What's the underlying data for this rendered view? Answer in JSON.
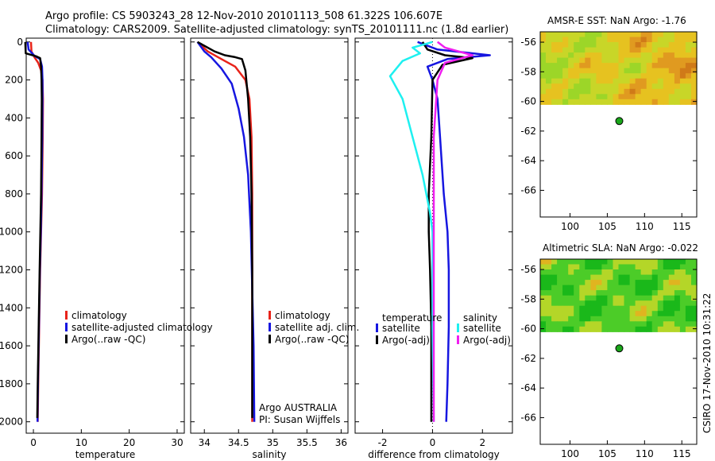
{
  "title": {
    "line1": "Argo profile: CS 5903243_28 12-Nov-2010 20101113_508 61.322S 106.607E",
    "line2": "Climatology: CARS2009. Satellite-adjusted climatology: synTS_20101111.nc (1.8d earlier)"
  },
  "credits": {
    "argo": "Argo AUSTRALIA",
    "pi": "PI: Susan Wijffels",
    "stamp": "CSIRO 17-Nov-2010 10:31:22"
  },
  "colors": {
    "red": "#e8231a",
    "blue": "#1616e0",
    "black": "#000000",
    "cyan": "#1ef0f0",
    "magenta": "#f01ef0",
    "green": "#1aa61a"
  },
  "chart_data": [
    {
      "type": "line",
      "id": "temperature",
      "xlabel": "temperature",
      "ylabel": "",
      "xlim": [
        -1.5,
        31.5
      ],
      "ylim": [
        2060,
        -20
      ],
      "xticks": [
        0,
        10,
        20,
        30
      ],
      "yticks": [
        0,
        200,
        400,
        600,
        800,
        1000,
        1200,
        1400,
        1600,
        1800,
        2000
      ],
      "legend": [
        "climatology",
        "satellite-adjusted climatology",
        "Argo(..raw -QC)"
      ],
      "series": [
        {
          "name": "climatology",
          "color": "red",
          "pts": [
            [
              -0.5,
              0
            ],
            [
              -0.4,
              50
            ],
            [
              0.2,
              80
            ],
            [
              1.0,
              110
            ],
            [
              1.6,
              150
            ],
            [
              1.9,
              200
            ],
            [
              2.0,
              300
            ],
            [
              1.95,
              500
            ],
            [
              1.8,
              800
            ],
            [
              1.6,
              1000
            ],
            [
              1.4,
              1200
            ],
            [
              1.2,
              1500
            ],
            [
              1.0,
              1800
            ],
            [
              0.9,
              2000
            ]
          ]
        },
        {
          "name": "satellite",
          "color": "blue",
          "pts": [
            [
              -1.2,
              0
            ],
            [
              -1.0,
              40
            ],
            [
              0.3,
              75
            ],
            [
              1.4,
              90
            ],
            [
              1.8,
              130
            ],
            [
              1.9,
              200
            ],
            [
              1.9,
              300
            ],
            [
              1.85,
              500
            ],
            [
              1.7,
              800
            ],
            [
              1.55,
              1000
            ],
            [
              1.35,
              1200
            ],
            [
              1.15,
              1500
            ],
            [
              0.95,
              1800
            ],
            [
              0.85,
              2000
            ]
          ]
        },
        {
          "name": "argo",
          "color": "black",
          "pts": [
            [
              -1.7,
              0
            ],
            [
              -1.6,
              60
            ],
            [
              0.5,
              75
            ],
            [
              1.4,
              85
            ],
            [
              1.6,
              130
            ],
            [
              1.7,
              200
            ],
            [
              1.75,
              300
            ],
            [
              1.7,
              500
            ],
            [
              1.6,
              800
            ],
            [
              1.45,
              1000
            ],
            [
              1.3,
              1200
            ],
            [
              1.1,
              1500
            ],
            [
              0.9,
              1800
            ],
            [
              0.8,
              1980
            ]
          ]
        }
      ]
    },
    {
      "type": "line",
      "id": "salinity",
      "xlabel": "salinity",
      "ylabel": "",
      "xlim": [
        33.8,
        36.1
      ],
      "ylim": [
        2060,
        -20
      ],
      "xticks": [
        34,
        34.5,
        35,
        35.5,
        36
      ],
      "yticks": [
        0,
        200,
        400,
        600,
        800,
        1000,
        1200,
        1400,
        1600,
        1800,
        2000
      ],
      "legend": [
        "climatology",
        "satellite adj. clim.",
        "Argo(..raw -QC)"
      ],
      "series": [
        {
          "name": "climatology",
          "color": "red",
          "pts": [
            [
              33.9,
              0
            ],
            [
              34.05,
              50
            ],
            [
              34.25,
              90
            ],
            [
              34.45,
              130
            ],
            [
              34.6,
              200
            ],
            [
              34.66,
              300
            ],
            [
              34.69,
              500
            ],
            [
              34.7,
              800
            ],
            [
              34.7,
              1200
            ],
            [
              34.7,
              1600
            ],
            [
              34.7,
              2000
            ]
          ]
        },
        {
          "name": "satellite",
          "color": "blue",
          "pts": [
            [
              33.9,
              0
            ],
            [
              34.0,
              50
            ],
            [
              34.1,
              80
            ],
            [
              34.25,
              140
            ],
            [
              34.4,
              220
            ],
            [
              34.5,
              350
            ],
            [
              34.58,
              500
            ],
            [
              34.64,
              700
            ],
            [
              34.68,
              1000
            ],
            [
              34.7,
              1300
            ],
            [
              34.72,
              1600
            ],
            [
              34.73,
              2000
            ]
          ]
        },
        {
          "name": "argo",
          "color": "black",
          "pts": [
            [
              33.9,
              0
            ],
            [
              34.15,
              50
            ],
            [
              34.3,
              70
            ],
            [
              34.45,
              80
            ],
            [
              34.55,
              90
            ],
            [
              34.6,
              150
            ],
            [
              34.64,
              300
            ],
            [
              34.67,
              500
            ],
            [
              34.69,
              800
            ],
            [
              34.7,
              1200
            ],
            [
              34.7,
              1600
            ],
            [
              34.7,
              1980
            ]
          ]
        }
      ]
    },
    {
      "type": "line",
      "id": "difference",
      "xlabel": "difference from climatology",
      "ylabel": "",
      "xlim": [
        -3.1,
        3.2
      ],
      "ylim": [
        2060,
        -20
      ],
      "xticks": [
        -2,
        0,
        2
      ],
      "yticks": [
        0,
        200,
        400,
        600,
        800,
        1000,
        1200,
        1400,
        1600,
        1800,
        2000
      ],
      "legend_left": {
        "heading": "temperature",
        "items": [
          "satellite",
          "Argo(-adj)"
        ]
      },
      "legend_right": {
        "heading": "salinity",
        "items": [
          "satellite",
          "Argo(-adj)"
        ]
      },
      "series": [
        {
          "name": "temp satellite",
          "color": "blue",
          "pts": [
            [
              -0.6,
              0
            ],
            [
              0.2,
              40
            ],
            [
              2.3,
              70
            ],
            [
              0.6,
              90
            ],
            [
              -0.2,
              130
            ],
            [
              0.0,
              200
            ],
            [
              0.2,
              300
            ],
            [
              0.3,
              500
            ],
            [
              0.45,
              800
            ],
            [
              0.6,
              1000
            ],
            [
              0.65,
              1200
            ],
            [
              0.65,
              1500
            ],
            [
              0.6,
              1800
            ],
            [
              0.55,
              2000
            ]
          ]
        },
        {
          "name": "temp argo",
          "color": "black",
          "pts": [
            [
              -0.4,
              0
            ],
            [
              -0.2,
              40
            ],
            [
              0.5,
              70
            ],
            [
              1.6,
              85
            ],
            [
              0.4,
              120
            ],
            [
              0.0,
              200
            ],
            [
              -0.05,
              500
            ],
            [
              -0.15,
              800
            ],
            [
              -0.15,
              1000
            ],
            [
              -0.1,
              1200
            ],
            [
              -0.05,
              1500
            ],
            [
              -0.05,
              2000
            ]
          ]
        },
        {
          "name": "sal satellite",
          "color": "cyan",
          "pts": [
            [
              0.0,
              0
            ],
            [
              -0.8,
              30
            ],
            [
              -0.5,
              60
            ],
            [
              -1.2,
              100
            ],
            [
              -1.7,
              180
            ],
            [
              -1.2,
              300
            ],
            [
              -0.8,
              500
            ],
            [
              -0.4,
              700
            ],
            [
              -0.1,
              900
            ],
            [
              0.0,
              1000
            ],
            [
              0.0,
              1500
            ],
            [
              0.05,
              2000
            ]
          ]
        },
        {
          "name": "sal argo",
          "color": "magenta",
          "pts": [
            [
              0.2,
              0
            ],
            [
              0.5,
              30
            ],
            [
              1.6,
              70
            ],
            [
              0.5,
              110
            ],
            [
              0.2,
              200
            ],
            [
              0.05,
              500
            ],
            [
              0.05,
              1000
            ],
            [
              0.05,
              1500
            ],
            [
              0.05,
              2000
            ]
          ]
        }
      ]
    },
    {
      "type": "heatmap",
      "id": "sst",
      "title": "AMSR-E SST: NaN Argo: -1.76",
      "xlim": [
        96,
        117
      ],
      "ylim": [
        -67.8,
        -55.3
      ],
      "xticks": [
        100,
        105,
        110,
        115
      ],
      "yticks": [
        -56,
        -58,
        -60,
        -62,
        -64,
        -66
      ],
      "data_lat_range": [
        -60.2,
        -55.3
      ],
      "argo_position": [
        106.607,
        -61.322
      ]
    },
    {
      "type": "heatmap",
      "id": "sla",
      "title": "Altimetric SLA: NaN Argo: -0.022",
      "xlim": [
        96,
        117
      ],
      "ylim": [
        -67.8,
        -55.3
      ],
      "xticks": [
        100,
        105,
        110,
        115
      ],
      "yticks": [
        -56,
        -58,
        -60,
        -62,
        -64,
        -66
      ],
      "data_lat_range": [
        -60.2,
        -55.3
      ],
      "argo_position": [
        106.607,
        -61.322
      ]
    }
  ]
}
